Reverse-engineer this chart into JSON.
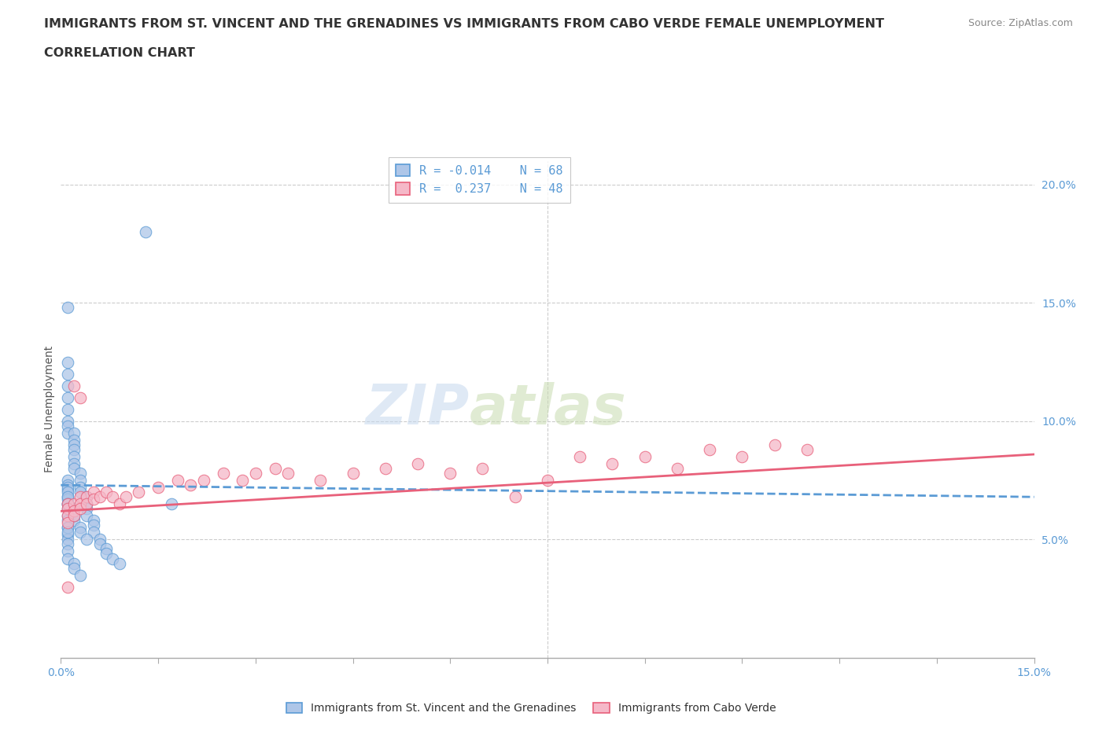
{
  "title_line1": "IMMIGRANTS FROM ST. VINCENT AND THE GRENADINES VS IMMIGRANTS FROM CABO VERDE FEMALE UNEMPLOYMENT",
  "title_line2": "CORRELATION CHART",
  "source": "Source: ZipAtlas.com",
  "ylabel": "Female Unemployment",
  "xlim": [
    0.0,
    0.15
  ],
  "ylim": [
    0.0,
    0.21
  ],
  "xticks": [
    0.0,
    0.015,
    0.03,
    0.045,
    0.06,
    0.075,
    0.09,
    0.105,
    0.12,
    0.135,
    0.15
  ],
  "ytick_positions": [
    0.05,
    0.1,
    0.15,
    0.2
  ],
  "ytick_labels": [
    "5.0%",
    "10.0%",
    "15.0%",
    "20.0%"
  ],
  "grid_color": "#cccccc",
  "background_color": "#ffffff",
  "blue_fill": "#aec6e8",
  "blue_edge": "#5b9bd5",
  "pink_fill": "#f5b8c8",
  "pink_edge": "#e8607a",
  "blue_line_color": "#5b9bd5",
  "pink_line_color": "#e8607a",
  "legend_r1": "R = -0.014",
  "legend_n1": "N = 68",
  "legend_r2": "R =  0.237",
  "legend_n2": "N = 48",
  "label1": "Immigrants from St. Vincent and the Grenadines",
  "label2": "Immigrants from Cabo Verde",
  "watermark_zip": "ZIP",
  "watermark_atlas": "atlas",
  "blue_scatter_x": [
    0.013,
    0.001,
    0.001,
    0.001,
    0.001,
    0.001,
    0.001,
    0.001,
    0.001,
    0.001,
    0.002,
    0.002,
    0.002,
    0.002,
    0.002,
    0.002,
    0.002,
    0.003,
    0.003,
    0.003,
    0.003,
    0.004,
    0.004,
    0.004,
    0.004,
    0.005,
    0.005,
    0.005,
    0.006,
    0.006,
    0.007,
    0.007,
    0.008,
    0.009,
    0.001,
    0.001,
    0.001,
    0.001,
    0.001,
    0.002,
    0.002,
    0.002,
    0.003,
    0.003,
    0.004,
    0.001,
    0.001,
    0.001,
    0.001,
    0.002,
    0.002,
    0.001,
    0.001,
    0.001,
    0.001,
    0.001,
    0.001,
    0.002,
    0.002,
    0.003,
    0.001,
    0.001,
    0.001,
    0.001,
    0.001,
    0.001,
    0.001,
    0.017
  ],
  "blue_scatter_y": [
    0.18,
    0.148,
    0.125,
    0.12,
    0.115,
    0.11,
    0.105,
    0.1,
    0.098,
    0.095,
    0.095,
    0.092,
    0.09,
    0.088,
    0.085,
    0.082,
    0.08,
    0.078,
    0.075,
    0.072,
    0.07,
    0.068,
    0.065,
    0.063,
    0.06,
    0.058,
    0.056,
    0.053,
    0.05,
    0.048,
    0.046,
    0.044,
    0.042,
    0.04,
    0.075,
    0.073,
    0.071,
    0.068,
    0.065,
    0.063,
    0.06,
    0.058,
    0.055,
    0.053,
    0.05,
    0.072,
    0.07,
    0.067,
    0.065,
    0.063,
    0.06,
    0.055,
    0.052,
    0.05,
    0.048,
    0.045,
    0.042,
    0.04,
    0.038,
    0.035,
    0.068,
    0.065,
    0.063,
    0.06,
    0.058,
    0.055,
    0.053,
    0.065
  ],
  "pink_scatter_x": [
    0.001,
    0.001,
    0.001,
    0.001,
    0.002,
    0.002,
    0.002,
    0.003,
    0.003,
    0.003,
    0.004,
    0.004,
    0.005,
    0.005,
    0.006,
    0.007,
    0.008,
    0.009,
    0.01,
    0.012,
    0.015,
    0.018,
    0.02,
    0.022,
    0.025,
    0.028,
    0.03,
    0.033,
    0.035,
    0.04,
    0.045,
    0.05,
    0.055,
    0.06,
    0.065,
    0.07,
    0.075,
    0.08,
    0.085,
    0.09,
    0.095,
    0.1,
    0.105,
    0.11,
    0.115,
    0.001,
    0.002,
    0.003
  ],
  "pink_scatter_y": [
    0.065,
    0.063,
    0.06,
    0.057,
    0.065,
    0.062,
    0.06,
    0.068,
    0.065,
    0.063,
    0.068,
    0.065,
    0.07,
    0.067,
    0.068,
    0.07,
    0.068,
    0.065,
    0.068,
    0.07,
    0.072,
    0.075,
    0.073,
    0.075,
    0.078,
    0.075,
    0.078,
    0.08,
    0.078,
    0.075,
    0.078,
    0.08,
    0.082,
    0.078,
    0.08,
    0.068,
    0.075,
    0.085,
    0.082,
    0.085,
    0.08,
    0.088,
    0.085,
    0.09,
    0.088,
    0.03,
    0.115,
    0.11
  ]
}
